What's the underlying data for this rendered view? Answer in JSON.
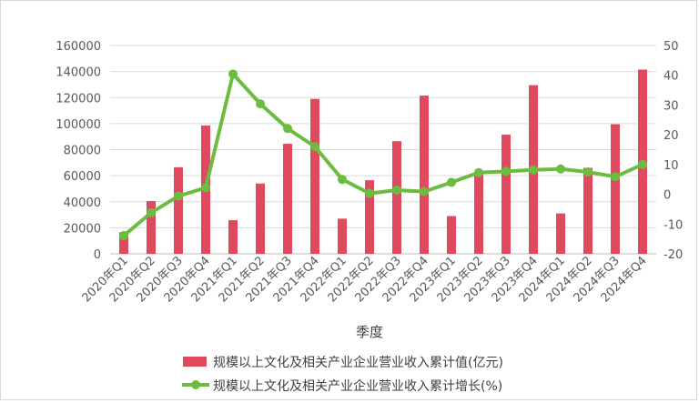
{
  "chart_data": {
    "type": "bar+line",
    "xlabel": "季度",
    "categories": [
      "2020年Q1",
      "2020年Q2",
      "2020年Q3",
      "2020年Q4",
      "2021年Q1",
      "2021年Q2",
      "2021年Q3",
      "2021年Q4",
      "2022年Q1",
      "2022年Q2",
      "2022年Q3",
      "2022年Q4",
      "2023年Q1",
      "2023年Q2",
      "2023年Q3",
      "2023年Q4",
      "2024年Q1",
      "2024年Q2",
      "2024年Q3",
      "2024年Q4"
    ],
    "series": [
      {
        "name": "规模以上文化及相关产业企业营业收入累计值(亿元)",
        "type": "bar",
        "axis": "left",
        "color": "#e04a5f",
        "values": [
          16500,
          40500,
          66500,
          98500,
          25800,
          54000,
          84500,
          119000,
          27000,
          56500,
          86500,
          121500,
          29000,
          63000,
          91500,
          129500,
          31000,
          66000,
          99500,
          141500
        ]
      },
      {
        "name": "规模以上文化及相关产业企业营业收入累计增长(%)",
        "type": "line",
        "axis": "right",
        "color": "#6cbd3f",
        "values": [
          -13.9,
          -6.2,
          -0.6,
          2.2,
          40.4,
          30.4,
          22.1,
          16.0,
          5.0,
          0.3,
          1.4,
          0.9,
          4.0,
          7.3,
          7.7,
          8.2,
          8.5,
          7.5,
          5.9,
          10.0
        ]
      }
    ],
    "ylim_left": [
      0,
      160000
    ],
    "ylim_right": [
      -20,
      50
    ],
    "yticks_left": [
      "0",
      "20000",
      "40000",
      "60000",
      "80000",
      "100000",
      "120000",
      "140000",
      "160000"
    ],
    "yticks_right": [
      "-20",
      "-10",
      "0",
      "10",
      "20",
      "30",
      "40",
      "50"
    ],
    "grid": true,
    "legend_position": "bottom"
  }
}
